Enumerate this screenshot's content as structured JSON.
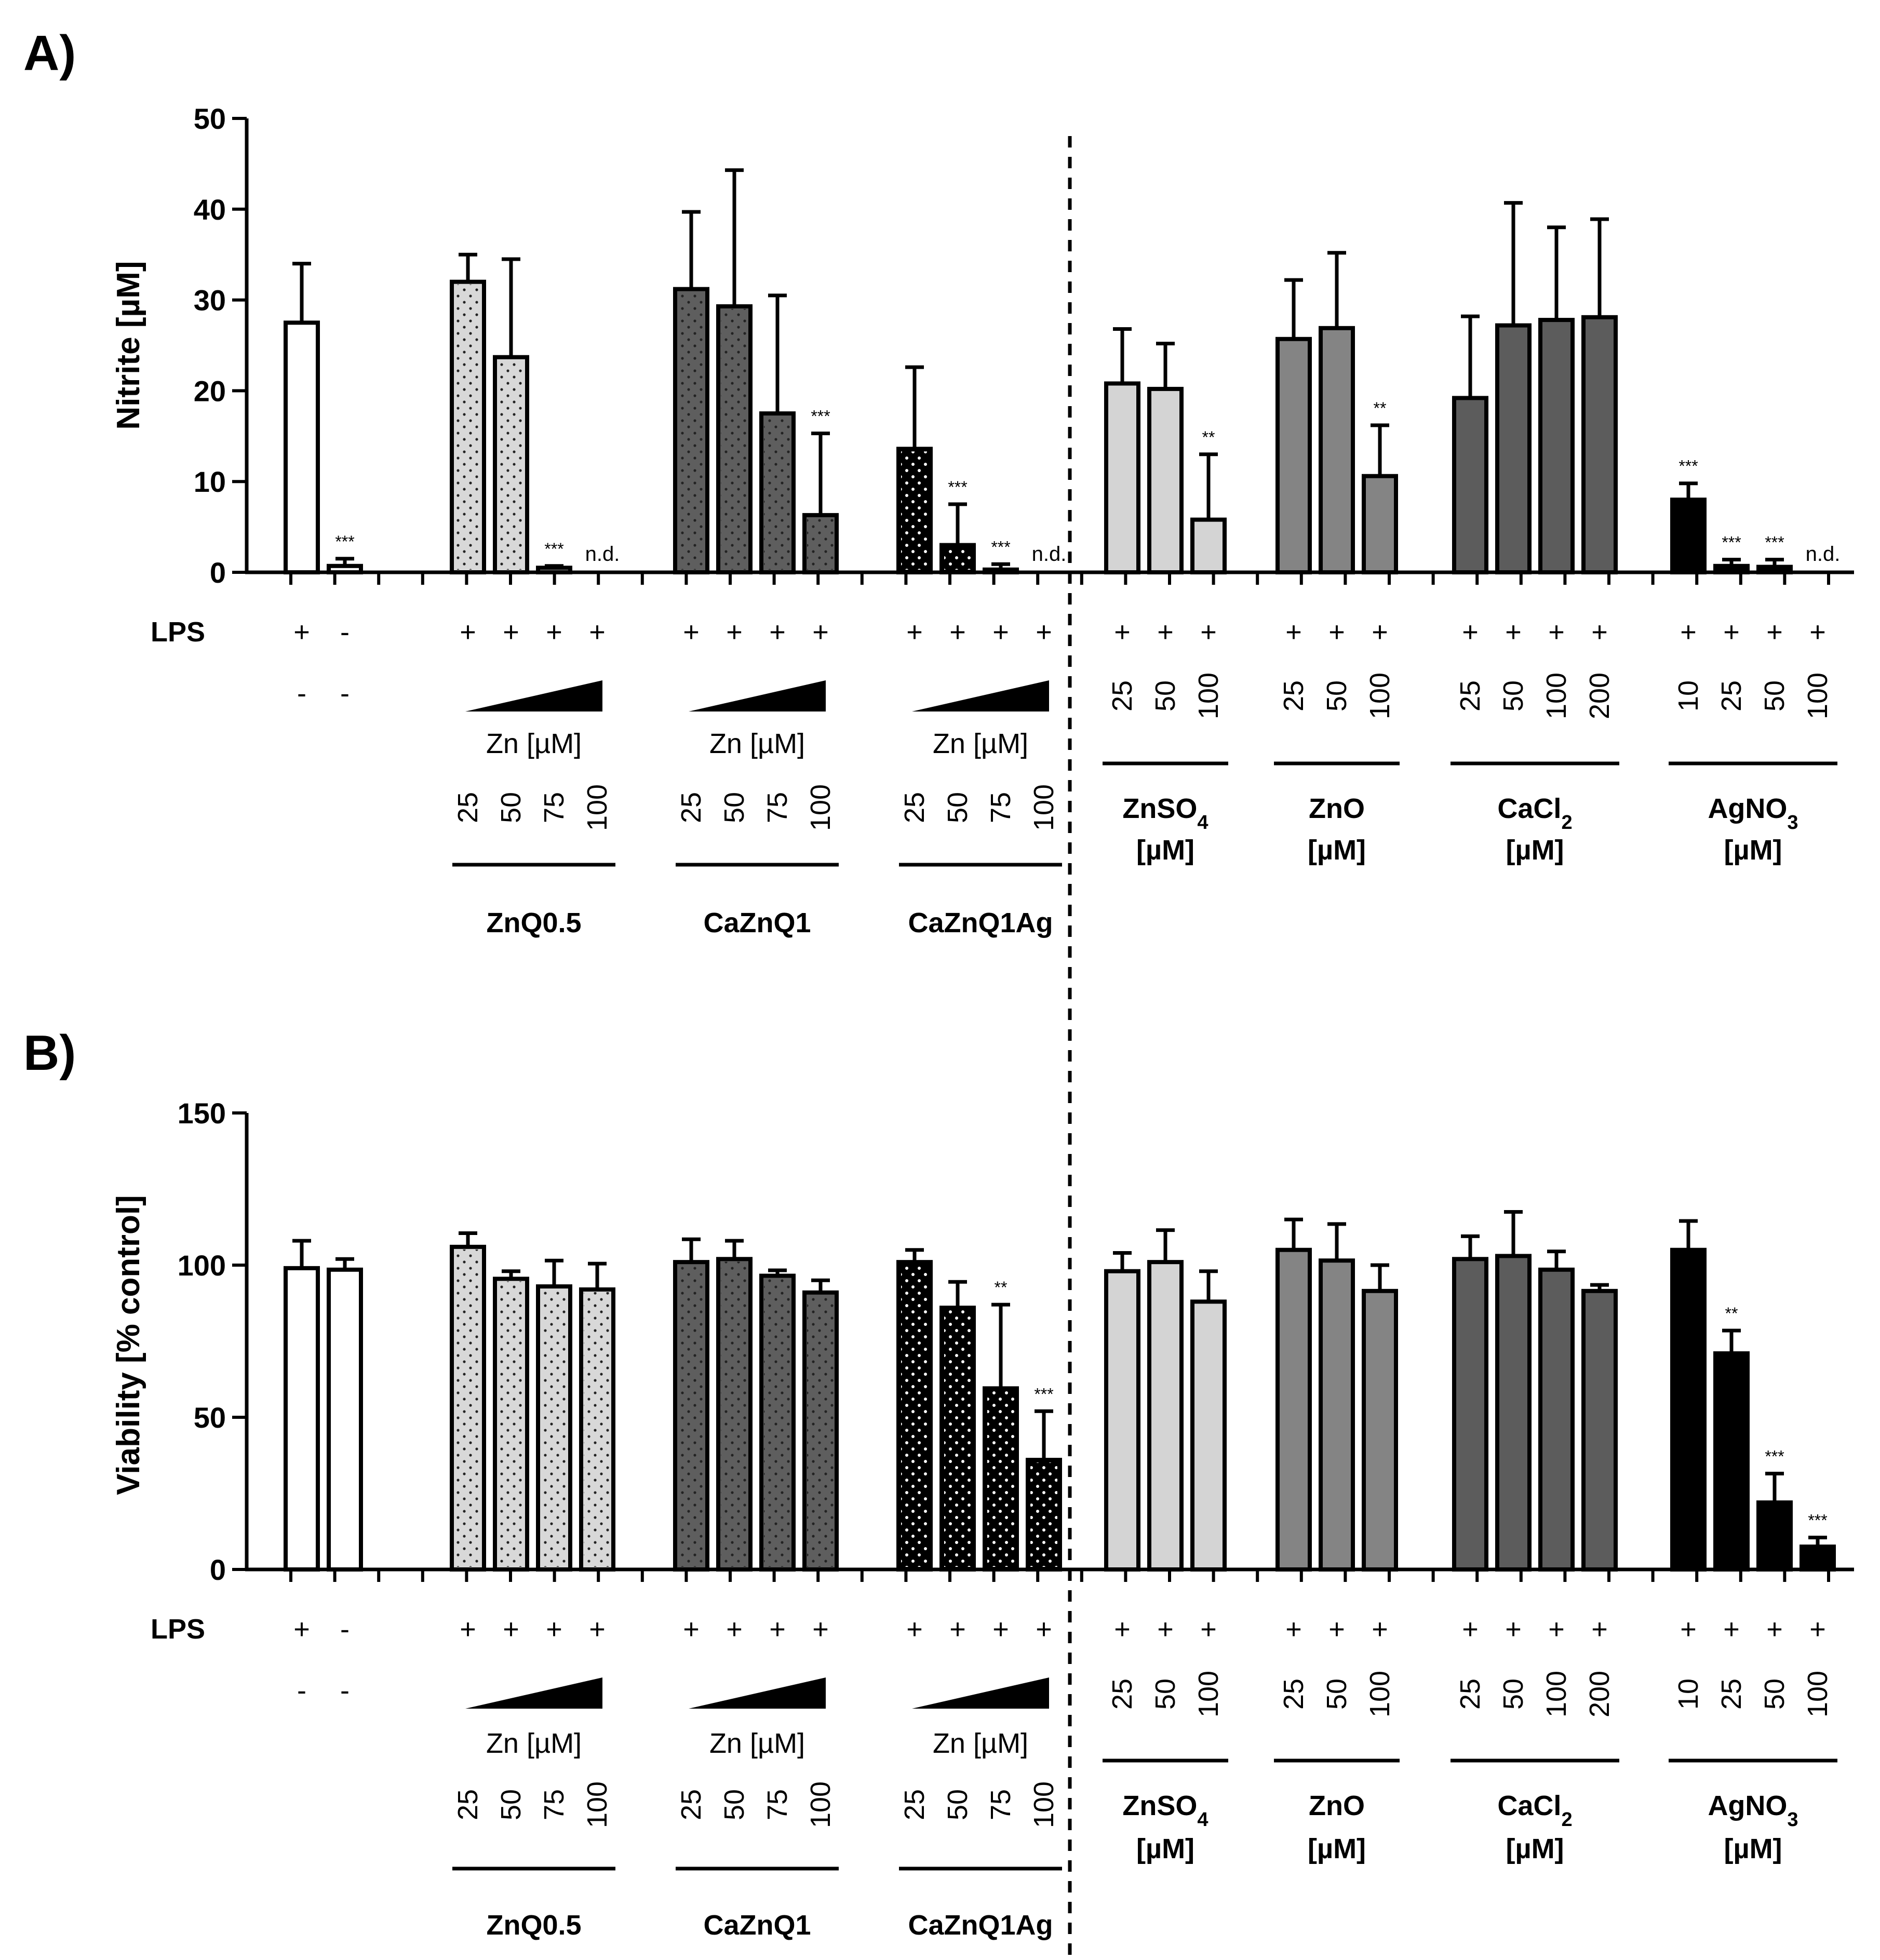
{
  "colors": {
    "white": "#ffffff",
    "dotted_light": "#d8d8d8",
    "dotted_dark": "#5e5e5e",
    "dotted_black": "#000000",
    "light_gray": "#d4d4d4",
    "mid_gray": "#848484",
    "dark_gray": "#5c5c5c",
    "black": "#000000",
    "axis": "#000000"
  },
  "row_labels": {
    "lps": "LPS"
  },
  "zn_label": "Zn [µM]",
  "chart_data": [
    {
      "type": "bar",
      "panel": "A)",
      "ylabel": "Nitrite [µM]",
      "ylim": [
        0,
        50
      ],
      "yticks": [
        "0",
        "10",
        "20",
        "30",
        "40",
        "50"
      ],
      "groups": [
        {
          "key": "ctrl",
          "name": "",
          "fill": "white",
          "pattern": "none",
          "bars": [
            {
              "value": 27.5,
              "err": 6.5,
              "sig": "",
              "nd": false,
              "lps": "+",
              "treat": "-"
            },
            {
              "value": 0.7,
              "err": 0.8,
              "sig": "***",
              "nd": false,
              "lps": "-",
              "treat": "-"
            }
          ]
        },
        {
          "key": "znq",
          "name": "ZnQ0.5",
          "fill": "dotted_light",
          "pattern": "dots",
          "conc": [
            "25",
            "50",
            "75",
            "100"
          ],
          "bars": [
            {
              "value": 32,
              "err": 3,
              "sig": "",
              "nd": false,
              "lps": "+"
            },
            {
              "value": 23.7,
              "err": 10.8,
              "sig": "",
              "nd": false,
              "lps": "+"
            },
            {
              "value": 0.5,
              "err": 0.2,
              "sig": "***",
              "nd": false,
              "lps": "+"
            },
            {
              "value": 0,
              "err": 0,
              "sig": "",
              "nd": true,
              "lps": "+"
            }
          ]
        },
        {
          "key": "caznq",
          "name": "CaZnQ1",
          "fill": "dotted_dark",
          "pattern": "dots",
          "conc": [
            "25",
            "50",
            "75",
            "100"
          ],
          "bars": [
            {
              "value": 31.2,
              "err": 8.5,
              "sig": "",
              "nd": false,
              "lps": "+"
            },
            {
              "value": 29.3,
              "err": 15,
              "sig": "",
              "nd": false,
              "lps": "+"
            },
            {
              "value": 17.5,
              "err": 13,
              "sig": "",
              "nd": false,
              "lps": "+"
            },
            {
              "value": 6.3,
              "err": 9,
              "sig": "***",
              "nd": false,
              "lps": "+"
            }
          ]
        },
        {
          "key": "caznqag",
          "name": "CaZnQ1Ag",
          "fill": "dotted_black",
          "pattern": "whitedots",
          "conc": [
            "25",
            "50",
            "75",
            "100"
          ],
          "bars": [
            {
              "value": 13.6,
              "err": 9,
              "sig": "",
              "nd": false,
              "lps": "+"
            },
            {
              "value": 3,
              "err": 4.5,
              "sig": "***",
              "nd": false,
              "lps": "+"
            },
            {
              "value": 0.3,
              "err": 0.6,
              "sig": "***",
              "nd": false,
              "lps": "+"
            },
            {
              "value": 0,
              "err": 0,
              "sig": "",
              "nd": true,
              "lps": "+"
            }
          ]
        },
        {
          "key": "znso4",
          "name": "ZnSO",
          "sub": "4",
          "unit": "[µM]",
          "fill": "light_gray",
          "pattern": "none",
          "conc": [
            "25",
            "50",
            "100"
          ],
          "bars": [
            {
              "value": 20.8,
              "err": 6,
              "sig": "",
              "nd": false,
              "lps": "+"
            },
            {
              "value": 20.2,
              "err": 5,
              "sig": "",
              "nd": false,
              "lps": "+"
            },
            {
              "value": 5.8,
              "err": 7.2,
              "sig": "**",
              "nd": false,
              "lps": "+"
            }
          ]
        },
        {
          "key": "zno",
          "name": "ZnO",
          "sub": "",
          "unit": "[µM]",
          "fill": "mid_gray",
          "pattern": "none",
          "conc": [
            "25",
            "50",
            "100"
          ],
          "bars": [
            {
              "value": 25.7,
              "err": 6.5,
              "sig": "",
              "nd": false,
              "lps": "+"
            },
            {
              "value": 26.9,
              "err": 8.3,
              "sig": "",
              "nd": false,
              "lps": "+"
            },
            {
              "value": 10.6,
              "err": 5.6,
              "sig": "**",
              "nd": false,
              "lps": "+"
            }
          ]
        },
        {
          "key": "cacl2",
          "name": "CaCl",
          "sub": "2",
          "unit": "[µM]",
          "fill": "dark_gray",
          "pattern": "none",
          "conc": [
            "25",
            "50",
            "100",
            "200"
          ],
          "bars": [
            {
              "value": 19.2,
              "err": 9,
              "sig": "",
              "nd": false,
              "lps": "+"
            },
            {
              "value": 27.2,
              "err": 13.5,
              "sig": "",
              "nd": false,
              "lps": "+"
            },
            {
              "value": 27.8,
              "err": 10.2,
              "sig": "",
              "nd": false,
              "lps": "+"
            },
            {
              "value": 28.1,
              "err": 10.8,
              "sig": "",
              "nd": false,
              "lps": "+"
            }
          ]
        },
        {
          "key": "agno3",
          "name": "AgNO",
          "sub": "3",
          "unit": "[µM]",
          "fill": "black",
          "pattern": "none",
          "conc": [
            "10",
            "25",
            "50",
            "100"
          ],
          "bars": [
            {
              "value": 8,
              "err": 1.8,
              "sig": "***",
              "nd": false,
              "lps": "+"
            },
            {
              "value": 0.7,
              "err": 0.7,
              "sig": "***",
              "nd": false,
              "lps": "+"
            },
            {
              "value": 0.6,
              "err": 0.8,
              "sig": "***",
              "nd": false,
              "lps": "+"
            },
            {
              "value": 0,
              "err": 0,
              "sig": "",
              "nd": true,
              "lps": "+"
            }
          ]
        }
      ],
      "nd_label": "n.d."
    },
    {
      "type": "bar",
      "panel": "B)",
      "ylabel": "Viability [% control]",
      "ylim": [
        0,
        150
      ],
      "yticks": [
        "0",
        "50",
        "100",
        "150"
      ],
      "groups": [
        {
          "key": "ctrl",
          "name": "",
          "fill": "white",
          "pattern": "none",
          "bars": [
            {
              "value": 99,
              "err": 9,
              "sig": "",
              "nd": false,
              "lps": "+",
              "treat": "-"
            },
            {
              "value": 98.5,
              "err": 3.5,
              "sig": "",
              "nd": false,
              "lps": "-",
              "treat": "-"
            }
          ]
        },
        {
          "key": "znq",
          "name": "ZnQ0.5",
          "fill": "dotted_light",
          "pattern": "dots",
          "conc": [
            "25",
            "50",
            "75",
            "100"
          ],
          "bars": [
            {
              "value": 106,
              "err": 4.5,
              "sig": "",
              "nd": false,
              "lps": "+"
            },
            {
              "value": 95.5,
              "err": 2.5,
              "sig": "",
              "nd": false,
              "lps": "+"
            },
            {
              "value": 93,
              "err": 8.5,
              "sig": "",
              "nd": false,
              "lps": "+"
            },
            {
              "value": 92,
              "err": 8.5,
              "sig": "",
              "nd": false,
              "lps": "+"
            }
          ]
        },
        {
          "key": "caznq",
          "name": "CaZnQ1",
          "fill": "dotted_dark",
          "pattern": "dots",
          "conc": [
            "25",
            "50",
            "75",
            "100"
          ],
          "bars": [
            {
              "value": 101,
              "err": 7.5,
              "sig": "",
              "nd": false,
              "lps": "+"
            },
            {
              "value": 102,
              "err": 6,
              "sig": "",
              "nd": false,
              "lps": "+"
            },
            {
              "value": 96.5,
              "err": 1.8,
              "sig": "",
              "nd": false,
              "lps": "+"
            },
            {
              "value": 91,
              "err": 4,
              "sig": "",
              "nd": false,
              "lps": "+"
            }
          ]
        },
        {
          "key": "caznqag",
          "name": "CaZnQ1Ag",
          "fill": "dotted_black",
          "pattern": "whitedots",
          "conc": [
            "25",
            "50",
            "75",
            "100"
          ],
          "bars": [
            {
              "value": 101,
              "err": 4,
              "sig": "",
              "nd": false,
              "lps": "+"
            },
            {
              "value": 86,
              "err": 8.5,
              "sig": "",
              "nd": false,
              "lps": "+"
            },
            {
              "value": 59.5,
              "err": 27.5,
              "sig": "**",
              "nd": false,
              "lps": "+"
            },
            {
              "value": 36,
              "err": 16,
              "sig": "***",
              "nd": false,
              "lps": "+"
            }
          ]
        },
        {
          "key": "znso4",
          "name": "ZnSO",
          "sub": "4",
          "unit": "[µM]",
          "fill": "light_gray",
          "pattern": "none",
          "conc": [
            "25",
            "50",
            "100"
          ],
          "bars": [
            {
              "value": 98,
              "err": 6,
              "sig": "",
              "nd": false,
              "lps": "+"
            },
            {
              "value": 101,
              "err": 10.5,
              "sig": "",
              "nd": false,
              "lps": "+"
            },
            {
              "value": 88,
              "err": 10,
              "sig": "",
              "nd": false,
              "lps": "+"
            }
          ]
        },
        {
          "key": "zno",
          "name": "ZnO",
          "sub": "",
          "unit": "[µM]",
          "fill": "mid_gray",
          "pattern": "none",
          "conc": [
            "25",
            "50",
            "100"
          ],
          "bars": [
            {
              "value": 105,
              "err": 10,
              "sig": "",
              "nd": false,
              "lps": "+"
            },
            {
              "value": 101.5,
              "err": 12,
              "sig": "",
              "nd": false,
              "lps": "+"
            },
            {
              "value": 91.5,
              "err": 8.5,
              "sig": "",
              "nd": false,
              "lps": "+"
            }
          ]
        },
        {
          "key": "cacl2",
          "name": "CaCl",
          "sub": "2",
          "unit": "[µM]",
          "fill": "dark_gray",
          "pattern": "none",
          "conc": [
            "25",
            "50",
            "100",
            "200"
          ],
          "bars": [
            {
              "value": 102,
              "err": 7.5,
              "sig": "",
              "nd": false,
              "lps": "+"
            },
            {
              "value": 103,
              "err": 14.5,
              "sig": "",
              "nd": false,
              "lps": "+"
            },
            {
              "value": 98.5,
              "err": 6,
              "sig": "",
              "nd": false,
              "lps": "+"
            },
            {
              "value": 91.5,
              "err": 2,
              "sig": "",
              "nd": false,
              "lps": "+"
            }
          ]
        },
        {
          "key": "agno3",
          "name": "AgNO",
          "sub": "3",
          "unit": "[µM]",
          "fill": "black",
          "pattern": "none",
          "conc": [
            "10",
            "25",
            "50",
            "100"
          ],
          "bars": [
            {
              "value": 105,
              "err": 9.5,
              "sig": "",
              "nd": false,
              "lps": "+"
            },
            {
              "value": 71,
              "err": 7.5,
              "sig": "**",
              "nd": false,
              "lps": "+"
            },
            {
              "value": 22,
              "err": 9.5,
              "sig": "***",
              "nd": false,
              "lps": "+"
            },
            {
              "value": 7.5,
              "err": 3,
              "sig": "***",
              "nd": false,
              "lps": "+"
            }
          ]
        }
      ],
      "nd_label": ""
    }
  ]
}
